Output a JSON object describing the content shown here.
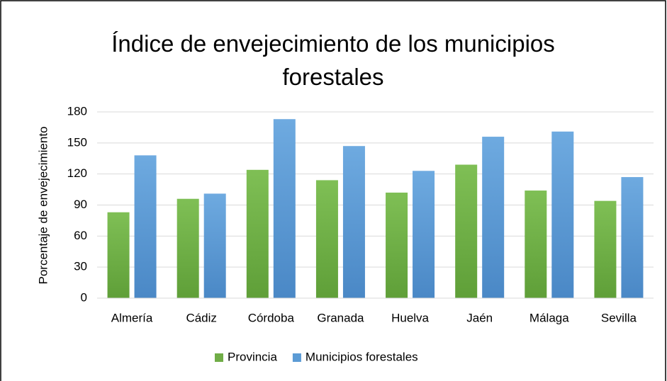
{
  "chart_data": {
    "type": "bar",
    "title": "Índice de envejecimiento de los municipios forestales",
    "y_label": "Porcentaje de envejecimiento",
    "categories": [
      "Almería",
      "Cádiz",
      "Córdoba",
      "Granada",
      "Huelva",
      "Jaén",
      "Málaga",
      "Sevilla"
    ],
    "series": [
      {
        "name": "Provincia",
        "color": "#70ad47",
        "values": [
          83,
          96,
          124,
          114,
          102,
          129,
          104,
          94
        ]
      },
      {
        "name": "Municipios forestales",
        "color": "#5b9bd5",
        "values": [
          138,
          101,
          173,
          147,
          123,
          156,
          161,
          117
        ]
      }
    ],
    "ylim": [
      0,
      180
    ],
    "yticks": [
      0,
      30,
      60,
      90,
      120,
      150,
      180
    ],
    "grid": true,
    "legend": "bottom"
  }
}
